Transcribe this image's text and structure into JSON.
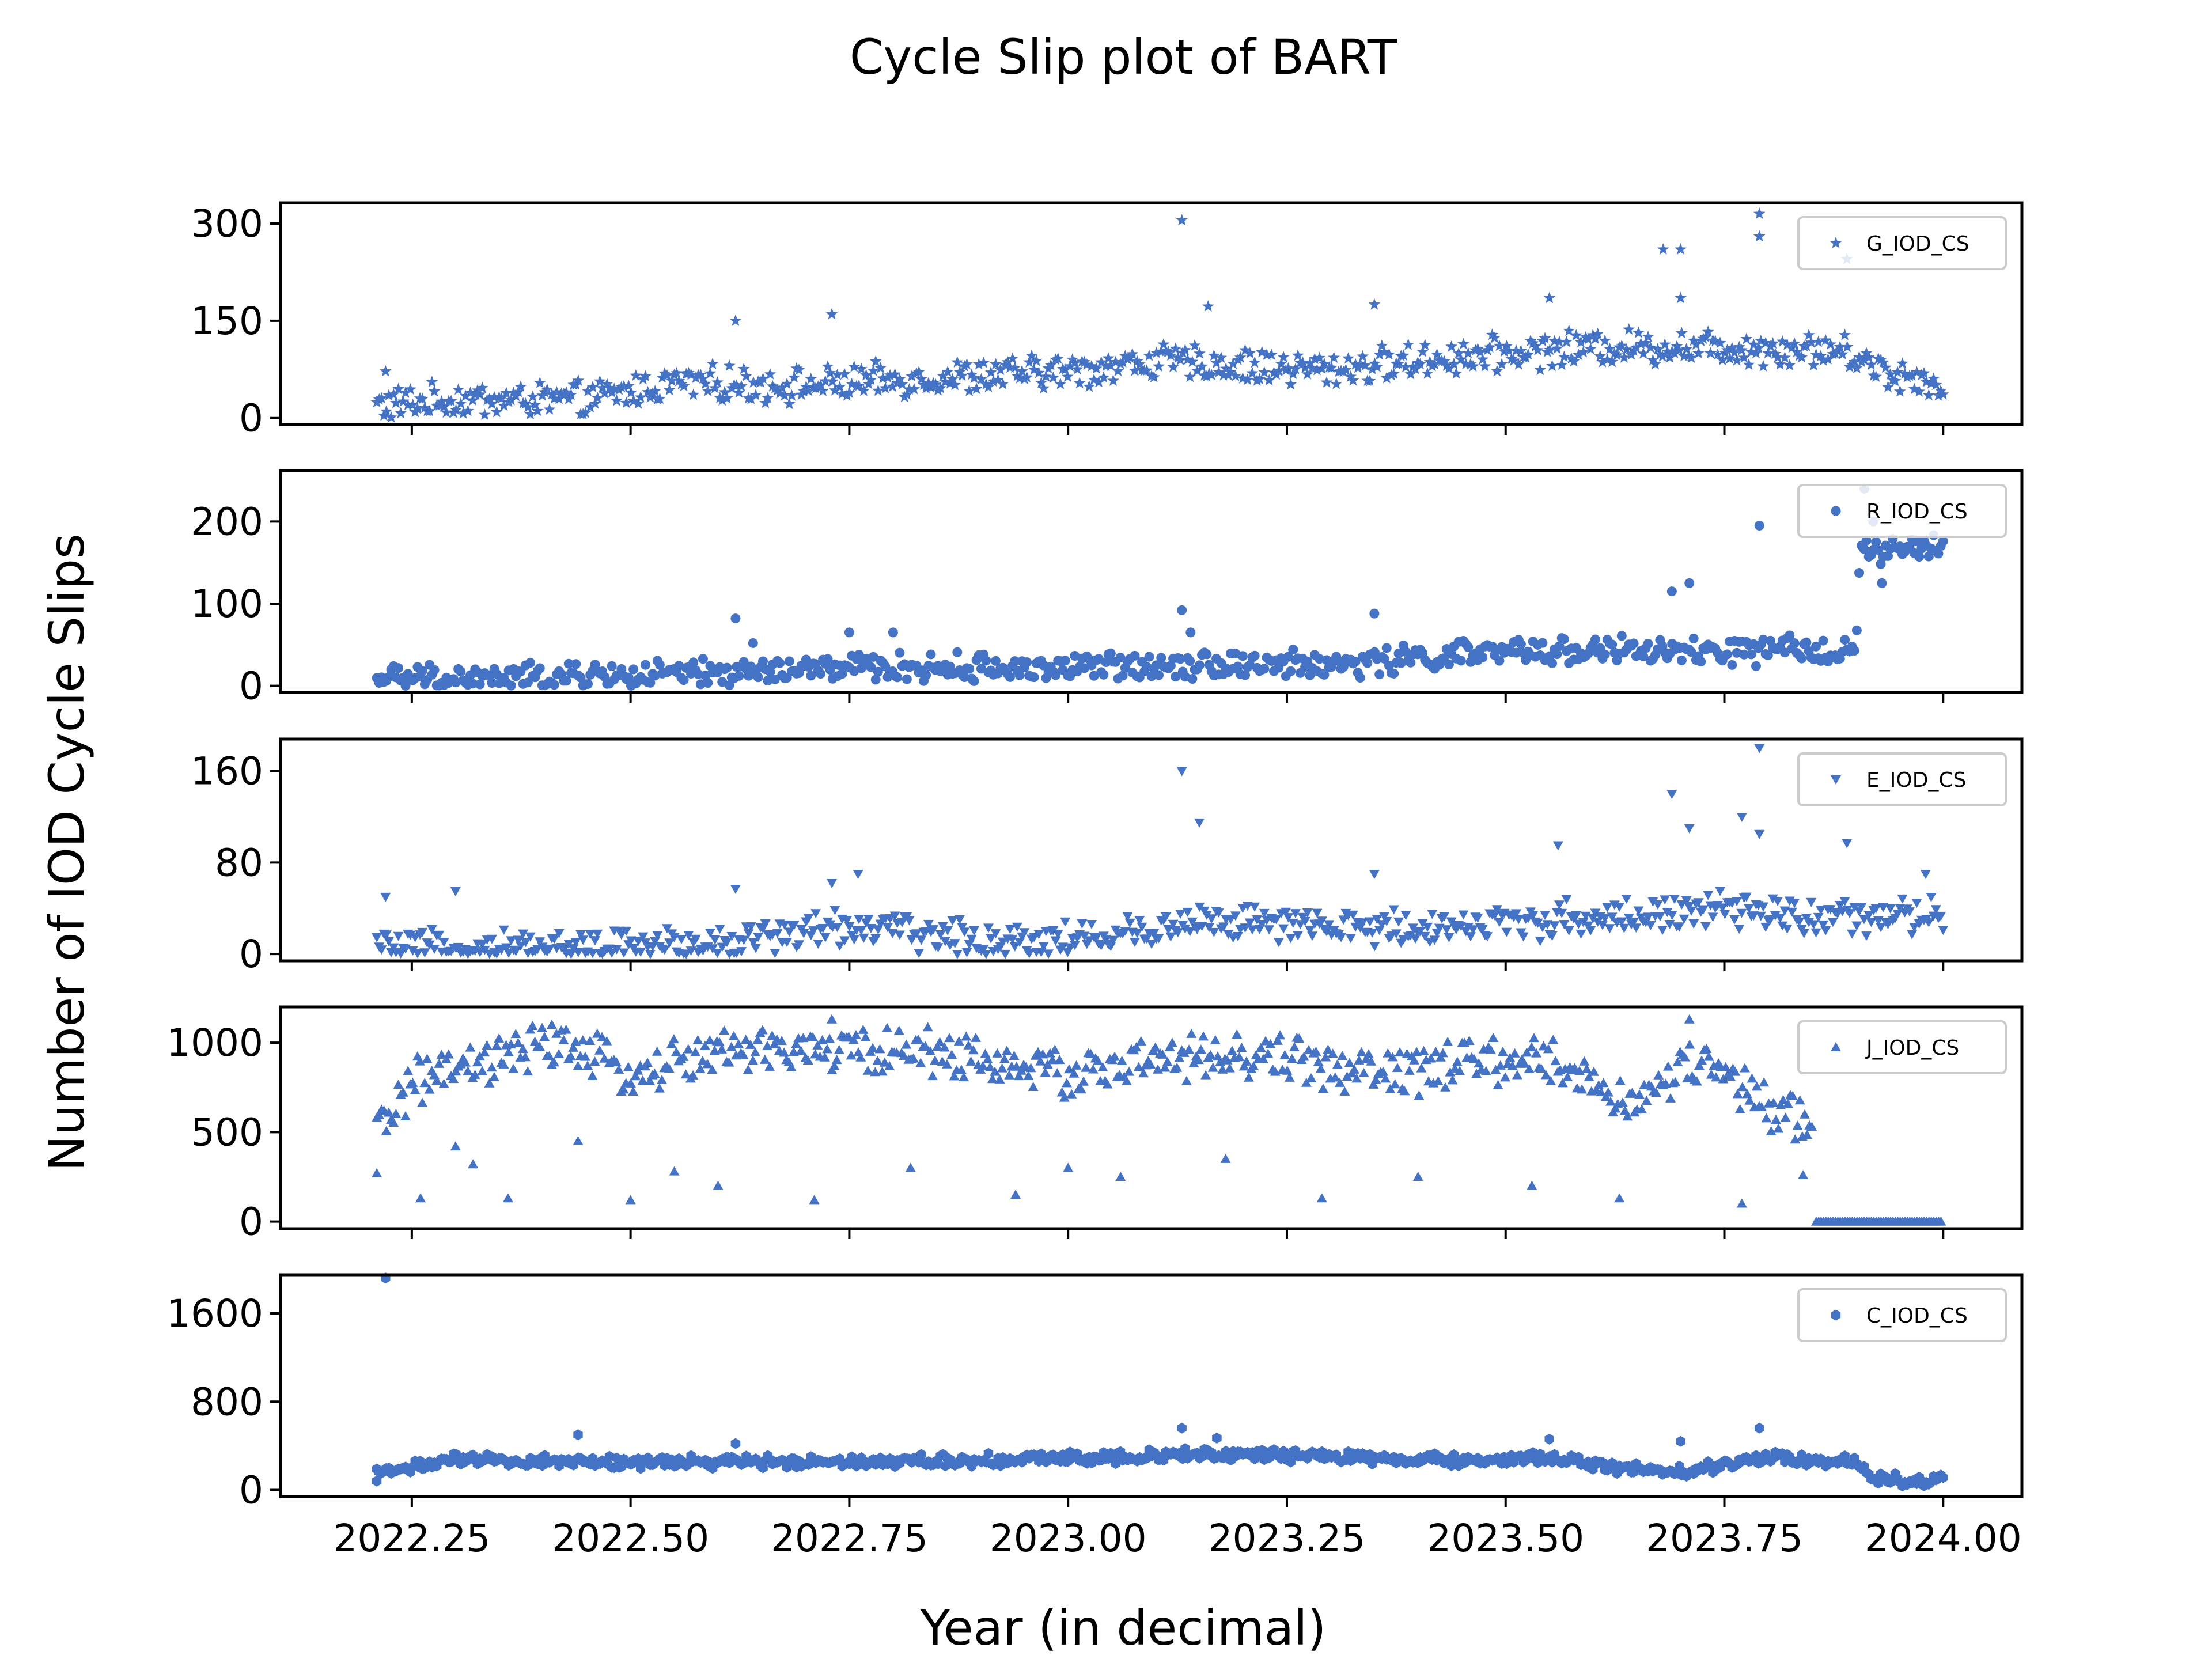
{
  "figure": {
    "title": "Cycle Slip plot of BART",
    "xlabel": "Year (in decimal)",
    "ylabel": "Number of IOD Cycle Slips"
  },
  "colors": {
    "marker": "#4472c4",
    "frame": "#000000"
  },
  "chart_data": [
    {
      "type": "scatter",
      "marker": "star",
      "xlim": [
        2022.1,
        2024.09
      ],
      "ylim": [
        -10,
        332
      ],
      "yticks": [
        "0",
        "150",
        "300"
      ],
      "ytick_values": [
        0,
        150,
        300
      ],
      "xticks": [
        "",
        "",
        "",
        "",
        "",
        "",
        "",
        ""
      ],
      "legend": "G_IOD_CS",
      "legend_position": "upper-right",
      "grid": false,
      "trend": [
        [
          2022.21,
          20
        ],
        [
          2022.3,
          28
        ],
        [
          2022.45,
          28
        ],
        [
          2022.55,
          55
        ],
        [
          2022.7,
          50
        ],
        [
          2022.85,
          62
        ],
        [
          2023.0,
          72
        ],
        [
          2023.1,
          88
        ],
        [
          2023.2,
          80
        ],
        [
          2023.3,
          75
        ],
        [
          2023.45,
          95
        ],
        [
          2023.6,
          110
        ],
        [
          2023.72,
          110
        ],
        [
          2023.88,
          105
        ],
        [
          2023.95,
          65
        ],
        [
          2024.0,
          55
        ]
      ],
      "spread": 22,
      "outliers": [
        [
          2022.22,
          72
        ],
        [
          2022.62,
          150
        ],
        [
          2022.73,
          160
        ],
        [
          2023.13,
          305
        ],
        [
          2023.16,
          172
        ],
        [
          2023.55,
          185
        ],
        [
          2023.68,
          260
        ],
        [
          2023.7,
          260
        ],
        [
          2023.7,
          185
        ],
        [
          2023.79,
          315
        ],
        [
          2023.79,
          280
        ],
        [
          2023.89,
          245
        ],
        [
          2023.35,
          175
        ]
      ]
    },
    {
      "type": "scatter",
      "marker": "circle",
      "xlim": [
        2022.1,
        2024.09
      ],
      "ylim": [
        -8,
        262
      ],
      "yticks": [
        "0",
        "100",
        "200"
      ],
      "ytick_values": [
        0,
        100,
        200
      ],
      "xticks": [
        "",
        "",
        "",
        "",
        "",
        "",
        "",
        ""
      ],
      "legend": "R_IOD_CS",
      "legend_position": "upper-right",
      "grid": false,
      "trend": [
        [
          2022.21,
          8
        ],
        [
          2022.4,
          10
        ],
        [
          2022.6,
          15
        ],
        [
          2022.75,
          22
        ],
        [
          2023.0,
          22
        ],
        [
          2023.15,
          28
        ],
        [
          2023.3,
          25
        ],
        [
          2023.45,
          38
        ],
        [
          2023.6,
          45
        ],
        [
          2023.7,
          40
        ],
        [
          2023.9,
          45
        ],
        [
          2023.905,
          160
        ],
        [
          2024.0,
          170
        ]
      ],
      "spread": 14,
      "outliers": [
        [
          2022.62,
          82
        ],
        [
          2022.64,
          52
        ],
        [
          2022.75,
          65
        ],
        [
          2022.8,
          65
        ],
        [
          2023.13,
          92
        ],
        [
          2023.14,
          65
        ],
        [
          2023.35,
          88
        ],
        [
          2023.69,
          115
        ],
        [
          2023.71,
          125
        ],
        [
          2023.79,
          195
        ],
        [
          2023.91,
          240
        ],
        [
          2023.92,
          200
        ],
        [
          2023.93,
          125
        ]
      ]
    },
    {
      "type": "scatter",
      "marker": "triangle-down",
      "xlim": [
        2022.1,
        2024.09
      ],
      "ylim": [
        -6,
        188
      ],
      "yticks": [
        "0",
        "80",
        "160"
      ],
      "ytick_values": [
        0,
        80,
        160
      ],
      "xticks": [
        "",
        "",
        "",
        "",
        "",
        "",
        "",
        ""
      ],
      "legend": "E_IOD_CS",
      "legend_position": "upper-right",
      "grid": false,
      "trend": [
        [
          2022.21,
          4
        ],
        [
          2022.4,
          5
        ],
        [
          2022.6,
          10
        ],
        [
          2022.75,
          25
        ],
        [
          2022.9,
          12
        ],
        [
          2023.05,
          15
        ],
        [
          2023.15,
          30
        ],
        [
          2023.3,
          22
        ],
        [
          2023.45,
          25
        ],
        [
          2023.6,
          32
        ],
        [
          2023.75,
          38
        ],
        [
          2023.9,
          30
        ],
        [
          2024.0,
          35
        ]
      ],
      "spread": 13,
      "outliers": [
        [
          2022.22,
          50
        ],
        [
          2022.3,
          55
        ],
        [
          2022.62,
          57
        ],
        [
          2022.73,
          62
        ],
        [
          2022.76,
          70
        ],
        [
          2023.13,
          160
        ],
        [
          2023.15,
          115
        ],
        [
          2023.35,
          70
        ],
        [
          2023.56,
          95
        ],
        [
          2023.69,
          140
        ],
        [
          2023.71,
          110
        ],
        [
          2023.77,
          120
        ],
        [
          2023.79,
          105
        ],
        [
          2023.79,
          180
        ],
        [
          2023.89,
          97
        ],
        [
          2023.98,
          70
        ]
      ]
    },
    {
      "type": "scatter",
      "marker": "triangle-up",
      "xlim": [
        2022.1,
        2024.09
      ],
      "ylim": [
        -40,
        1200
      ],
      "yticks": [
        "0",
        "500",
        "1000"
      ],
      "ytick_values": [
        0,
        500,
        1000
      ],
      "xticks": [
        "",
        "",
        "",
        "",
        "",
        "",
        "",
        ""
      ],
      "legend": "J_IOD_CS",
      "legend_position": "upper-right",
      "grid": false,
      "trend": [
        [
          2022.21,
          500
        ],
        [
          2022.25,
          780
        ],
        [
          2022.32,
          860
        ],
        [
          2022.42,
          1000
        ],
        [
          2022.5,
          820
        ],
        [
          2022.6,
          950
        ],
        [
          2022.75,
          960
        ],
        [
          2022.85,
          950
        ],
        [
          2023.0,
          820
        ],
        [
          2023.1,
          900
        ],
        [
          2023.25,
          920
        ],
        [
          2023.35,
          820
        ],
        [
          2023.45,
          880
        ],
        [
          2023.55,
          900
        ],
        [
          2023.65,
          650
        ],
        [
          2023.72,
          920
        ],
        [
          2023.8,
          620
        ],
        [
          2023.85,
          550
        ]
      ],
      "spread": 110,
      "zero_run": {
        "from": 2023.855,
        "to": 2024.0,
        "value": 0
      },
      "outliers": [
        [
          2022.21,
          270
        ],
        [
          2022.26,
          130
        ],
        [
          2022.3,
          420
        ],
        [
          2022.32,
          320
        ],
        [
          2022.36,
          130
        ],
        [
          2022.44,
          450
        ],
        [
          2022.5,
          120
        ],
        [
          2022.55,
          280
        ],
        [
          2022.6,
          200
        ],
        [
          2022.71,
          120
        ],
        [
          2022.82,
          300
        ],
        [
          2022.94,
          150
        ],
        [
          2023.0,
          300
        ],
        [
          2023.06,
          250
        ],
        [
          2023.18,
          350
        ],
        [
          2023.29,
          130
        ],
        [
          2023.4,
          250
        ],
        [
          2023.53,
          200
        ],
        [
          2023.63,
          130
        ],
        [
          2023.77,
          100
        ],
        [
          2023.84,
          260
        ],
        [
          2023.71,
          1130
        ],
        [
          2022.73,
          1130
        ],
        [
          2022.41,
          1100
        ]
      ]
    },
    {
      "type": "scatter",
      "marker": "hexagon",
      "xlim": [
        2022.1,
        2024.09
      ],
      "ylim": [
        -60,
        1950
      ],
      "yticks": [
        "0",
        "800",
        "1600"
      ],
      "ytick_values": [
        0,
        800,
        1600
      ],
      "xticks": [
        "2022.25",
        "2022.50",
        "2022.75",
        "2023.00",
        "2023.25",
        "2023.50",
        "2023.75",
        "2024.00"
      ],
      "xtick_values": [
        2022.25,
        2022.5,
        2022.75,
        2023.0,
        2023.25,
        2023.5,
        2023.75,
        2024.0
      ],
      "legend": "C_IOD_CS",
      "legend_position": "upper-right",
      "grid": false,
      "trend": [
        [
          2022.21,
          160
        ],
        [
          2022.3,
          270
        ],
        [
          2022.5,
          250
        ],
        [
          2022.7,
          260
        ],
        [
          2022.9,
          270
        ],
        [
          2023.05,
          300
        ],
        [
          2023.15,
          330
        ],
        [
          2023.3,
          300
        ],
        [
          2023.45,
          260
        ],
        [
          2023.55,
          300
        ],
        [
          2023.62,
          200
        ],
        [
          2023.7,
          160
        ],
        [
          2023.8,
          300
        ],
        [
          2023.9,
          250
        ],
        [
          2023.92,
          100
        ],
        [
          2024.0,
          80
        ]
      ],
      "spread": 45,
      "outliers": [
        [
          2022.22,
          1920
        ],
        [
          2022.44,
          500
        ],
        [
          2022.62,
          420
        ],
        [
          2023.13,
          560
        ],
        [
          2023.17,
          470
        ],
        [
          2023.55,
          460
        ],
        [
          2023.7,
          440
        ],
        [
          2023.79,
          560
        ],
        [
          2022.21,
          80
        ]
      ]
    }
  ]
}
